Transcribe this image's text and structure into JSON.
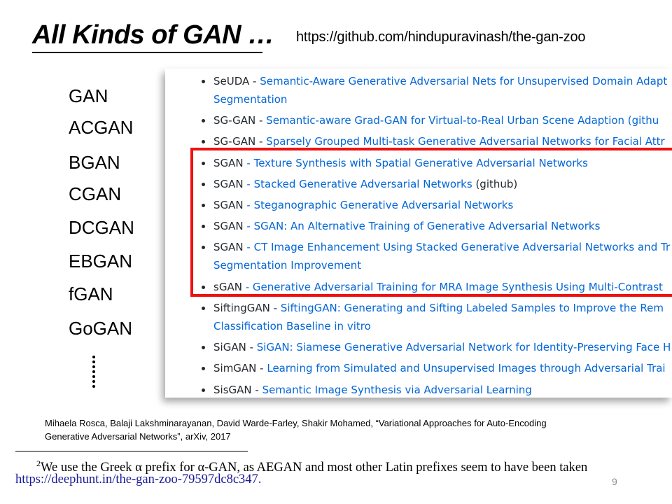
{
  "slide": {
    "title": "All Kinds of GAN …",
    "source_url": "https://github.com/hindupuravinash/the-gan-zoo",
    "page_number": "9"
  },
  "gan_list": [
    "GAN",
    "ACGAN",
    "BGAN",
    "CGAN",
    "DCGAN",
    "EBGAN",
    "fGAN",
    "GoGAN"
  ],
  "ellipsis": "⋮",
  "zoo": {
    "items": [
      {
        "name": "SeUDA",
        "sep": " - ",
        "paper": "Semantic-Aware Generative Adversarial Nets for Unsupervised Domain Adapt",
        "cont": "Segmentation"
      },
      {
        "name": "SG-GAN",
        "sep": " - ",
        "paper": "Semantic-aware Grad-GAN for Virtual-to-Real Urban Scene Adaption (githu",
        "cont": ""
      },
      {
        "name": "SG-GAN",
        "sep": " - ",
        "paper": "Sparsely Grouped Multi-task Generative Adversarial Networks for Facial Attr",
        "cont": ""
      },
      {
        "name": "SGAN",
        "sep": " - ",
        "paper": "Texture Synthesis with Spatial Generative Adversarial Networks",
        "cont": ""
      },
      {
        "name": "SGAN",
        "sep": " - ",
        "paper": "Stacked Generative Adversarial Networks",
        "extra": " (github)",
        "cont": ""
      },
      {
        "name": "SGAN",
        "sep": " - ",
        "paper": "Steganographic Generative Adversarial Networks",
        "cont": ""
      },
      {
        "name": "SGAN",
        "sep": " - ",
        "paper": "SGAN: An Alternative Training of Generative Adversarial Networks",
        "cont": ""
      },
      {
        "name": "SGAN",
        "sep": " - ",
        "paper": "CT Image Enhancement Using Stacked Generative Adversarial Networks and Tr",
        "cont": "Segmentation Improvement"
      },
      {
        "name": "sGAN",
        "sep": " - ",
        "paper": "Generative Adversarial Training for MRA Image Synthesis Using Multi-Contrast",
        "cont": ""
      },
      {
        "name": "SiftingGAN",
        "sep": " - ",
        "paper": "SiftingGAN: Generating and Sifting Labeled Samples to Improve the Rem",
        "cont": "Classification Baseline in vitro"
      },
      {
        "name": "SiGAN",
        "sep": " - ",
        "paper": "SiGAN: Siamese Generative Adversarial Network for Identity-Preserving Face H",
        "cont": ""
      },
      {
        "name": "SimGAN",
        "sep": " - ",
        "paper": "Learning from Simulated and Unsupervised Images through Adversarial Trai",
        "cont": ""
      },
      {
        "name": "SisGAN",
        "sep": " - ",
        "paper": "Semantic Image Synthesis via Adversarial Learning",
        "cont": ""
      }
    ]
  },
  "citation": {
    "authors": "Mihaela Rosca, Balaji Lakshminarayanan, David Warde-Farley, Shakir Mohamed, “Variational Approaches for Auto-Encoding",
    "rest": "Generative Adversarial Networks”, arXiv, 2017"
  },
  "footnote": {
    "marker": "2",
    "text": "We use the Greek α prefix for α-GAN, as AEGAN and most other Latin prefixes seem to have been taken",
    "url": "https://deephunt.in/the-gan-zoo-79597dc8c347."
  },
  "colors": {
    "link": "#0366d6",
    "highlight": "#ee1111",
    "footnote_link": "#1a1a99"
  }
}
